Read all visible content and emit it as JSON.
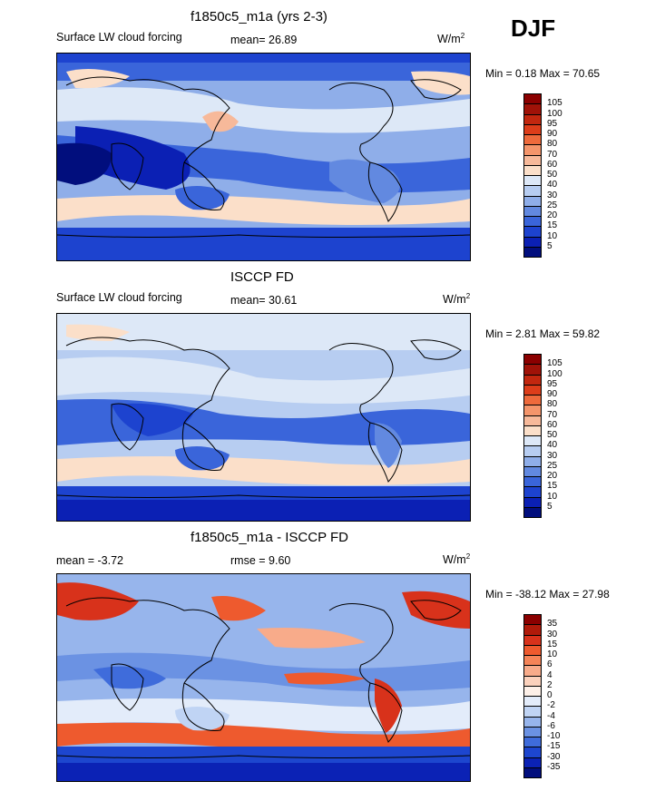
{
  "season": "DJF",
  "panels": [
    {
      "title": "f1850c5_m1a (yrs 2-3)",
      "left_label": "Surface LW cloud forcing",
      "mean_label": "mean=  26.89",
      "mid_label": "",
      "units": "W/m",
      "units_sup": "2",
      "minmax": "Min =   0.18 Max =  70.65",
      "colorbar_labels": [
        "105",
        "100",
        "95",
        "90",
        "80",
        "70",
        "60",
        "50",
        "40",
        "30",
        "25",
        "20",
        "15",
        "10",
        "5"
      ],
      "colorbar_colors": [
        "#8b0000",
        "#a01208",
        "#c2270f",
        "#dd3d1a",
        "#ee6a3c",
        "#f4956b",
        "#f7b99a",
        "#fbdfc9",
        "#dde8f7",
        "#b7cdf1",
        "#8faee9",
        "#6289e0",
        "#3a65da",
        "#1d43cf",
        "#0b20b4",
        "#010e7d"
      ]
    },
    {
      "title": "ISCCP FD",
      "left_label": "Surface LW cloud forcing",
      "mean_label": "mean=  30.61",
      "mid_label": "",
      "units": "W/m",
      "units_sup": "2",
      "minmax": "Min =   2.81 Max =  59.82",
      "colorbar_labels": [
        "105",
        "100",
        "95",
        "90",
        "80",
        "70",
        "60",
        "50",
        "40",
        "30",
        "25",
        "20",
        "15",
        "10",
        "5"
      ],
      "colorbar_colors": [
        "#8b0000",
        "#a01208",
        "#c2270f",
        "#dd3d1a",
        "#ee6a3c",
        "#f4956b",
        "#f7b99a",
        "#fbdfc9",
        "#dde8f7",
        "#b7cdf1",
        "#8faee9",
        "#6289e0",
        "#3a65da",
        "#1d43cf",
        "#0b20b4",
        "#010e7d"
      ]
    },
    {
      "title": "f1850c5_m1a - ISCCP FD",
      "left_label": "mean =  -3.72",
      "mean_label": "",
      "mid_label": "rmse =   9.60",
      "units": "W/m",
      "units_sup": "2",
      "minmax": "Min = -38.12 Max =  27.98",
      "colorbar_labels": [
        "35",
        "30",
        "15",
        "10",
        "6",
        "4",
        "2",
        "0",
        "-2",
        "-4",
        "-6",
        "-10",
        "-15",
        "-30",
        "-35"
      ],
      "colorbar_colors": [
        "#8b0000",
        "#b01a0a",
        "#d8321b",
        "#ee5a2e",
        "#f58458",
        "#f8ab8a",
        "#fbd1bc",
        "#fdf0e8",
        "#e3ecfa",
        "#c0d4f4",
        "#97b5ec",
        "#6b92e3",
        "#3f6cdb",
        "#1d46cf",
        "#0b22b5",
        "#010e7d"
      ]
    }
  ]
}
